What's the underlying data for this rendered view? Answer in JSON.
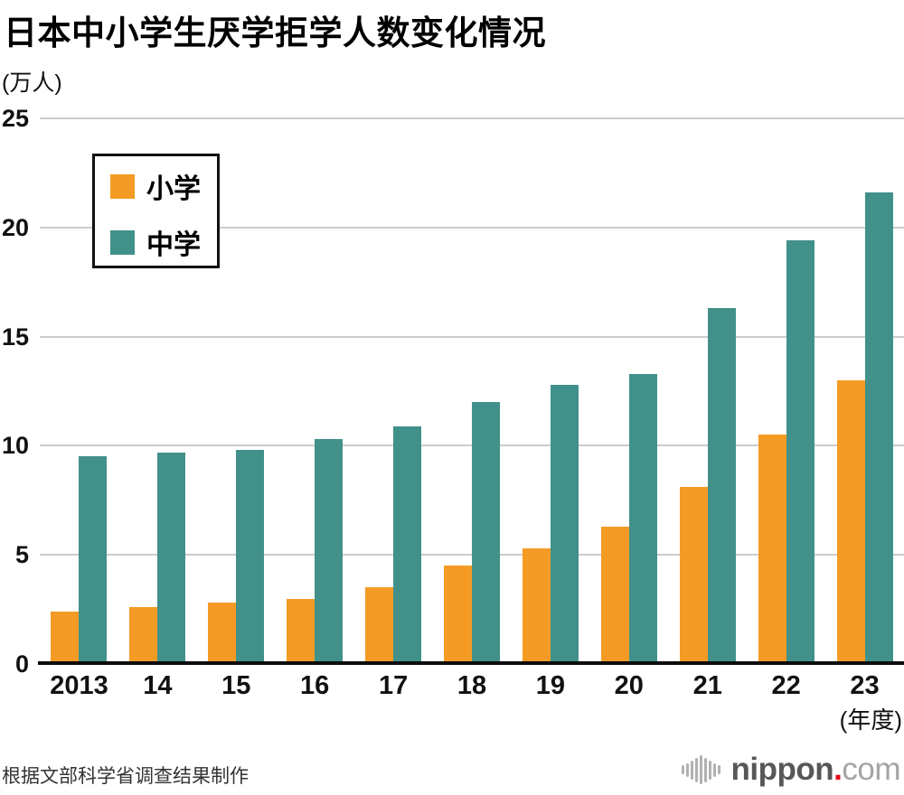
{
  "title": "日本中小学生厌学拒学人数变化情况",
  "unit_label": "(万人)",
  "chart_data": {
    "type": "bar",
    "title": "日本中小学生厌学拒学人数变化情况",
    "ylabel": "(万人)",
    "xlabel": "(年度)",
    "categories": [
      "2013",
      "14",
      "15",
      "16",
      "17",
      "18",
      "19",
      "20",
      "21",
      "22",
      "23"
    ],
    "series": [
      {
        "name": "小学",
        "color": "#f49b25",
        "values": [
          2.4,
          2.6,
          2.8,
          3.0,
          3.5,
          4.5,
          5.3,
          6.3,
          8.1,
          10.5,
          13.0
        ]
      },
      {
        "name": "中学",
        "color": "#41918a",
        "values": [
          9.5,
          9.7,
          9.8,
          10.3,
          10.9,
          12.0,
          12.8,
          13.3,
          16.3,
          19.4,
          21.6
        ]
      }
    ],
    "ylim": [
      0,
      25
    ],
    "yticks": [
      0,
      5,
      10,
      15,
      20,
      25
    ],
    "grid": true,
    "gridline_color": "#cccccc",
    "legend_position": "top-left"
  },
  "x_axis_unit": "(年度)",
  "footer": {
    "source": "根据文部科学省调查结果制作"
  },
  "logo": {
    "brand": "nippon",
    "dot": ".",
    "tld": "com",
    "brand_color": "#585757",
    "dot_color": "#e60012",
    "tld_color": "#a3a4a4"
  }
}
